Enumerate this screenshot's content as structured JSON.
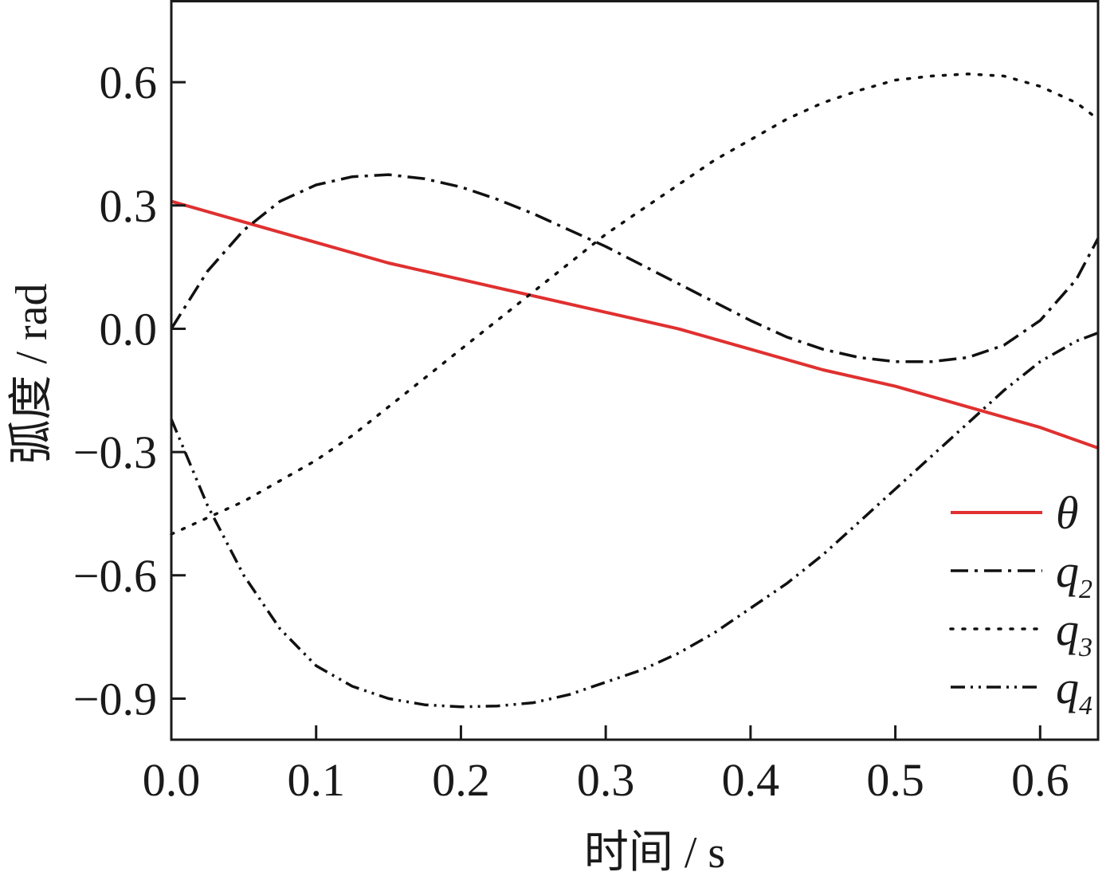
{
  "chart_data": {
    "type": "line",
    "xlabel": "时间 / s",
    "ylabel": "弧度 / rad",
    "xlim": [
      0,
      0.64
    ],
    "ylim": [
      -1.0,
      0.8
    ],
    "x_ticks": [
      0.0,
      0.1,
      0.2,
      0.3,
      0.4,
      0.5,
      0.6
    ],
    "x_tick_labels": [
      "0.0",
      "0.1",
      "0.2",
      "0.3",
      "0.4",
      "0.5",
      "0.6"
    ],
    "y_ticks": [
      0.6,
      0.3,
      0.0,
      -0.3,
      -0.6,
      -0.9
    ],
    "y_tick_labels": [
      "0.6",
      "0.3",
      "0.0",
      "−0.3",
      "−0.6",
      "−0.9"
    ],
    "grid": false,
    "legend_position": "bottom-right",
    "series": [
      {
        "name": "θ",
        "color": "#e03030",
        "style": "solid",
        "x": [
          0.0,
          0.05,
          0.1,
          0.15,
          0.2,
          0.25,
          0.3,
          0.35,
          0.4,
          0.45,
          0.5,
          0.55,
          0.6,
          0.64
        ],
        "y": [
          0.31,
          0.26,
          0.21,
          0.16,
          0.12,
          0.08,
          0.04,
          0.0,
          -0.05,
          -0.1,
          -0.14,
          -0.19,
          -0.24,
          -0.29
        ]
      },
      {
        "name": "q2",
        "label_main": "q",
        "label_sub": "2",
        "color": "#111111",
        "style": "dashdot",
        "x": [
          0.0,
          0.025,
          0.05,
          0.075,
          0.1,
          0.125,
          0.15,
          0.175,
          0.2,
          0.225,
          0.25,
          0.275,
          0.3,
          0.325,
          0.35,
          0.375,
          0.4,
          0.425,
          0.45,
          0.475,
          0.5,
          0.525,
          0.55,
          0.575,
          0.6,
          0.625,
          0.64
        ],
        "y": [
          0.0,
          0.14,
          0.24,
          0.31,
          0.35,
          0.37,
          0.375,
          0.365,
          0.345,
          0.315,
          0.28,
          0.24,
          0.2,
          0.155,
          0.11,
          0.065,
          0.02,
          -0.02,
          -0.05,
          -0.07,
          -0.08,
          -0.08,
          -0.07,
          -0.04,
          0.02,
          0.12,
          0.22
        ]
      },
      {
        "name": "q3",
        "label_main": "q",
        "label_sub": "3",
        "color": "#111111",
        "style": "dotted",
        "x": [
          0.0,
          0.025,
          0.05,
          0.075,
          0.1,
          0.125,
          0.15,
          0.175,
          0.2,
          0.225,
          0.25,
          0.275,
          0.3,
          0.325,
          0.35,
          0.375,
          0.4,
          0.425,
          0.45,
          0.475,
          0.5,
          0.525,
          0.55,
          0.575,
          0.6,
          0.625,
          0.64
        ],
        "y": [
          -0.5,
          -0.46,
          -0.42,
          -0.37,
          -0.32,
          -0.26,
          -0.19,
          -0.12,
          -0.05,
          0.02,
          0.09,
          0.16,
          0.23,
          0.29,
          0.35,
          0.41,
          0.46,
          0.51,
          0.55,
          0.58,
          0.605,
          0.615,
          0.62,
          0.615,
          0.59,
          0.55,
          0.51
        ]
      },
      {
        "name": "q4",
        "label_main": "q",
        "label_sub": "4",
        "color": "#111111",
        "style": "dashdotdot",
        "x": [
          0.0,
          0.025,
          0.05,
          0.075,
          0.1,
          0.125,
          0.15,
          0.175,
          0.2,
          0.225,
          0.25,
          0.275,
          0.3,
          0.325,
          0.35,
          0.375,
          0.4,
          0.425,
          0.45,
          0.475,
          0.5,
          0.525,
          0.55,
          0.575,
          0.6,
          0.625,
          0.64
        ],
        "y": [
          -0.22,
          -0.43,
          -0.6,
          -0.73,
          -0.82,
          -0.87,
          -0.9,
          -0.915,
          -0.92,
          -0.918,
          -0.91,
          -0.89,
          -0.86,
          -0.83,
          -0.79,
          -0.74,
          -0.68,
          -0.62,
          -0.55,
          -0.47,
          -0.39,
          -0.31,
          -0.23,
          -0.15,
          -0.08,
          -0.03,
          -0.01
        ]
      }
    ]
  }
}
